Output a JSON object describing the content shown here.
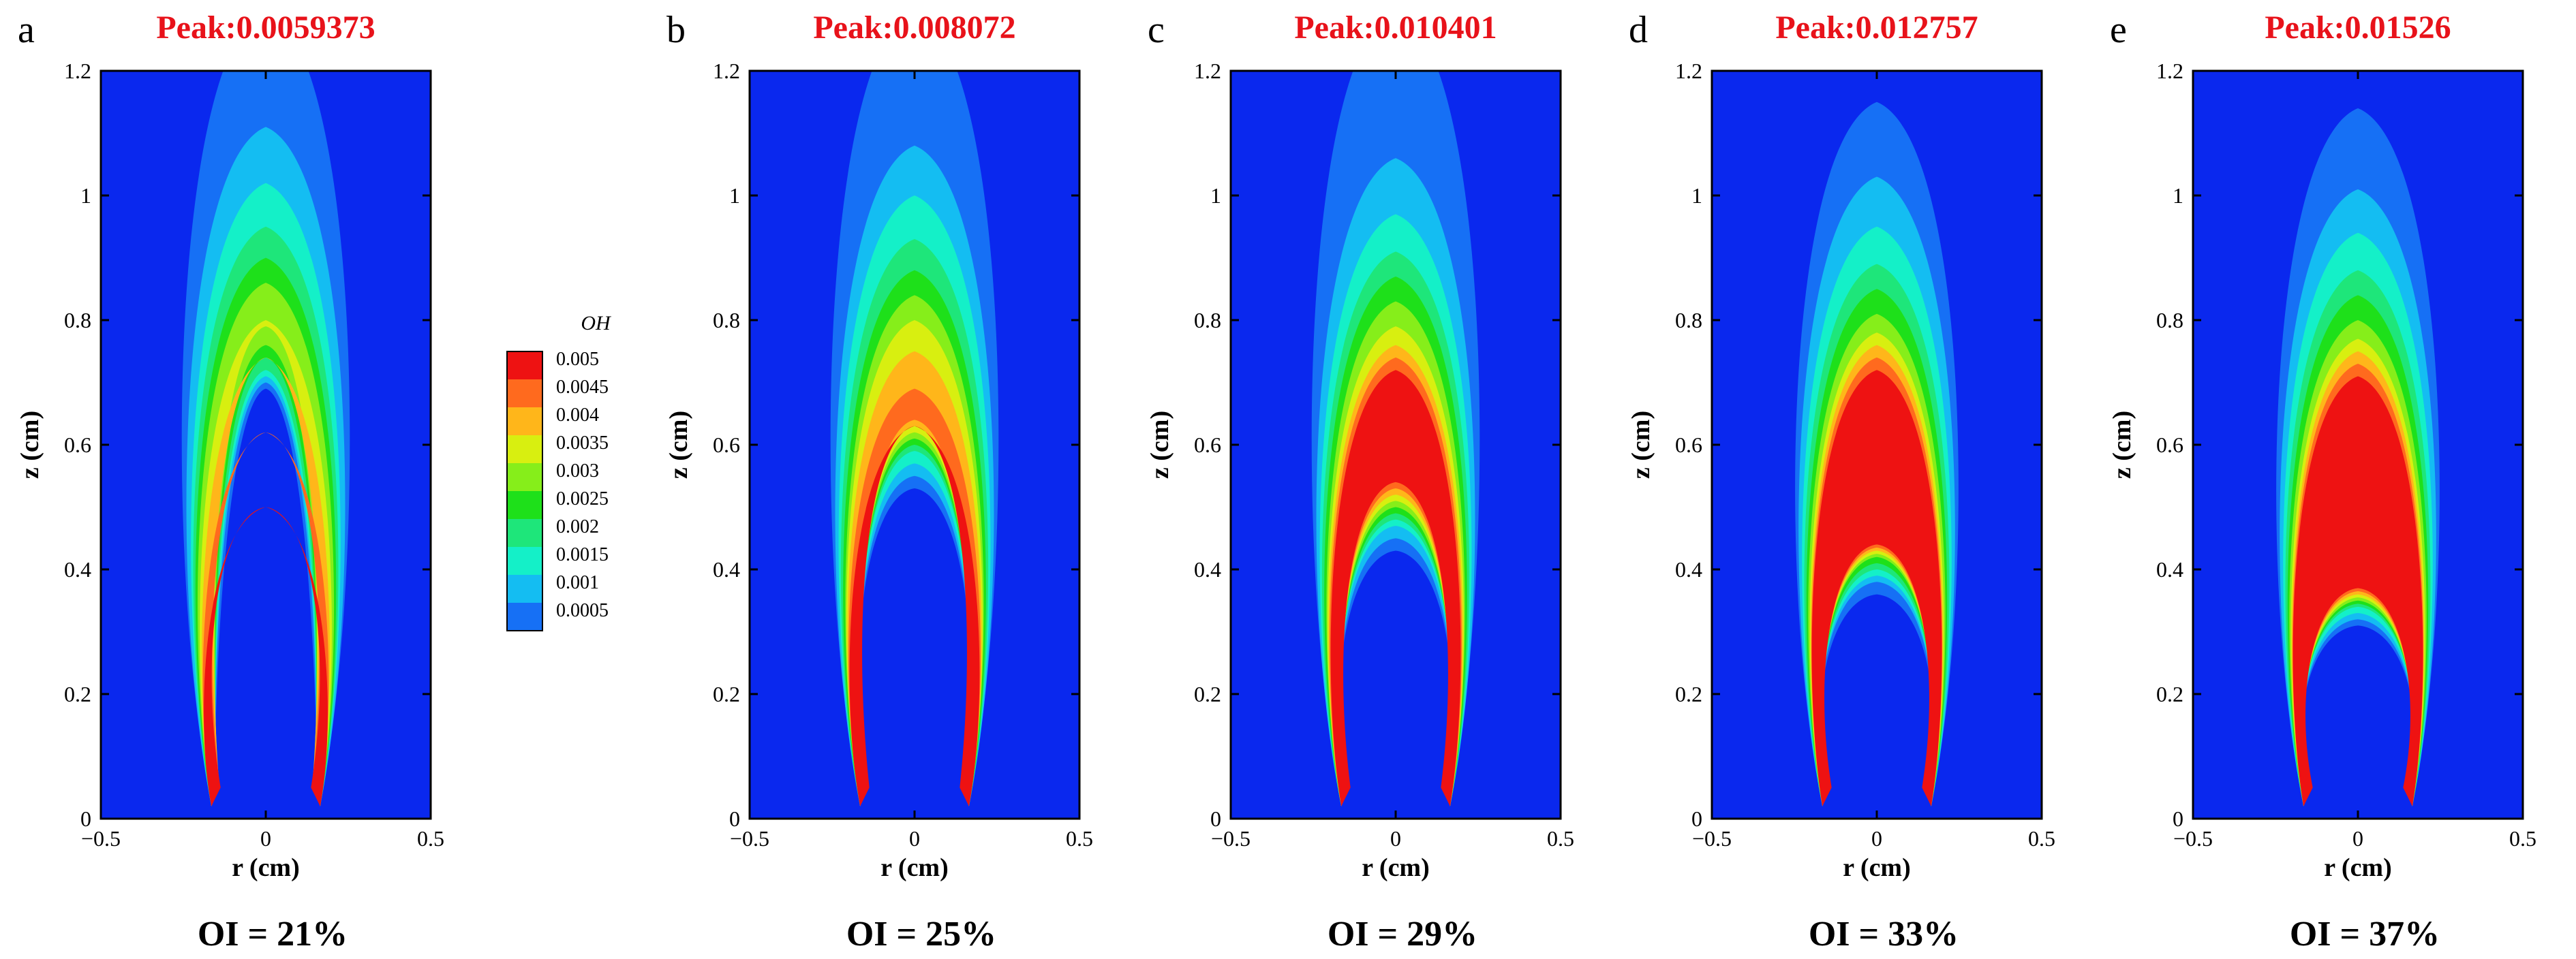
{
  "figure": {
    "colors": {
      "background": "#ffffff",
      "peak_text": "#e8121a",
      "axis": "#000000"
    },
    "legend": {
      "title": "OH",
      "levels": [
        "0.005",
        "0.0045",
        "0.004",
        "0.0035",
        "0.003",
        "0.0025",
        "0.002",
        "0.0015",
        "0.001",
        "0.0005"
      ],
      "colors": [
        "#ee1212",
        "#ff6a1e",
        "#ffb61a",
        "#d8ef10",
        "#86ee1a",
        "#1ee01a",
        "#1ee67a",
        "#14f0c8",
        "#14bdf2",
        "#1670f5",
        "#0a28ee"
      ]
    }
  },
  "chart_data": [
    {
      "type": "contour",
      "panel_label": "a",
      "title": "Peak:0.0059373",
      "caption": "OI = 21%",
      "xlabel": "r (cm)",
      "ylabel": "z (cm)",
      "xlim": [
        -0.5,
        0.5
      ],
      "ylim": [
        0,
        1.2
      ],
      "xticks": [
        "−0.5",
        "0",
        "0.5"
      ],
      "yticks": [
        "0",
        "0.2",
        "0.4",
        "0.6",
        "0.8",
        "1",
        "1.2"
      ],
      "peak": 0.0059373,
      "field": "OH",
      "contours": [
        {
          "level": 0.0005,
          "r_max": 0.28,
          "z_top": 1.3,
          "inner_z_top": 0.69,
          "inner_r": 0.1
        },
        {
          "level": 0.001,
          "r_max": 0.26,
          "z_top": 1.11,
          "inner_z_top": 0.7,
          "inner_r": 0.11
        },
        {
          "level": 0.0015,
          "r_max": 0.24,
          "z_top": 1.02,
          "inner_z_top": 0.71,
          "inner_r": 0.115
        },
        {
          "level": 0.002,
          "r_max": 0.23,
          "z_top": 0.95,
          "inner_z_top": 0.72,
          "inner_r": 0.12
        },
        {
          "level": 0.0025,
          "r_max": 0.22,
          "z_top": 0.9,
          "inner_z_top": 0.74,
          "inner_r": 0.125
        },
        {
          "level": 0.003,
          "r_max": 0.21,
          "z_top": 0.86,
          "inner_z_top": 0.76,
          "inner_r": 0.13
        },
        {
          "level": 0.0035,
          "r_max": 0.2,
          "z_top": 0.8,
          "inner_z_top": 0.79,
          "inner_r": 0.135
        },
        {
          "level": 0.004,
          "r_max": 0.19,
          "z_top": 0.74,
          "inner_z_top": 0.74,
          "inner_r": 0.14
        },
        {
          "level": 0.0045,
          "r_max": 0.185,
          "z_top": 0.62,
          "inner_z_top": 0.62,
          "inner_r": 0.15
        },
        {
          "level": 0.005,
          "r_max": 0.18,
          "z_top": 0.5,
          "inner_z_top": 0.5,
          "inner_r": 0.155
        }
      ]
    },
    {
      "type": "contour",
      "panel_label": "b",
      "title": "Peak:0.008072",
      "caption": "OI = 25%",
      "xlabel": "r (cm)",
      "ylabel": "z (cm)",
      "xlim": [
        -0.5,
        0.5
      ],
      "ylim": [
        0,
        1.2
      ],
      "xticks": [
        "−0.5",
        "0",
        "0.5"
      ],
      "yticks": [
        "0",
        "0.2",
        "0.4",
        "0.6",
        "0.8",
        "1",
        "1.2"
      ],
      "peak": 0.008072,
      "field": "OH",
      "contours": [
        {
          "level": 0.0005,
          "r_max": 0.28,
          "z_top": 1.3,
          "inner_z_top": 0.53
        },
        {
          "level": 0.001,
          "r_max": 0.26,
          "z_top": 1.08,
          "inner_z_top": 0.55
        },
        {
          "level": 0.0015,
          "r_max": 0.245,
          "z_top": 1.0,
          "inner_z_top": 0.57
        },
        {
          "level": 0.002,
          "r_max": 0.235,
          "z_top": 0.93,
          "inner_z_top": 0.59
        },
        {
          "level": 0.0025,
          "r_max": 0.225,
          "z_top": 0.88,
          "inner_z_top": 0.6
        },
        {
          "level": 0.003,
          "r_max": 0.215,
          "z_top": 0.84,
          "inner_z_top": 0.61
        },
        {
          "level": 0.0035,
          "r_max": 0.21,
          "z_top": 0.8,
          "inner_z_top": 0.62
        },
        {
          "level": 0.004,
          "r_max": 0.205,
          "z_top": 0.75,
          "inner_z_top": 0.63
        },
        {
          "level": 0.0045,
          "r_max": 0.2,
          "z_top": 0.69,
          "inner_z_top": 0.64
        },
        {
          "level": 0.005,
          "r_max": 0.195,
          "z_top": 0.63,
          "inner_z_top": 0.63
        }
      ]
    },
    {
      "type": "contour",
      "panel_label": "c",
      "title": "Peak:0.010401",
      "caption": "OI = 29%",
      "xlabel": "r (cm)",
      "ylabel": "z (cm)",
      "xlim": [
        -0.5,
        0.5
      ],
      "ylim": [
        0,
        1.2
      ],
      "xticks": [
        "−0.5",
        "0",
        "0.5"
      ],
      "yticks": [
        "0",
        "0.2",
        "0.4",
        "0.6",
        "0.8",
        "1",
        "1.2"
      ],
      "peak": 0.010401,
      "field": "OH",
      "contours": [
        {
          "level": 0.0005,
          "r_max": 0.28,
          "z_top": 1.3,
          "inner_z_top": 0.43
        },
        {
          "level": 0.001,
          "r_max": 0.26,
          "z_top": 1.06,
          "inner_z_top": 0.45
        },
        {
          "level": 0.0015,
          "r_max": 0.245,
          "z_top": 0.97,
          "inner_z_top": 0.47
        },
        {
          "level": 0.002,
          "r_max": 0.235,
          "z_top": 0.91,
          "inner_z_top": 0.48
        },
        {
          "level": 0.0025,
          "r_max": 0.225,
          "z_top": 0.87,
          "inner_z_top": 0.49
        },
        {
          "level": 0.003,
          "r_max": 0.215,
          "z_top": 0.83,
          "inner_z_top": 0.5
        },
        {
          "level": 0.0035,
          "r_max": 0.21,
          "z_top": 0.79,
          "inner_z_top": 0.51
        },
        {
          "level": 0.004,
          "r_max": 0.205,
          "z_top": 0.76,
          "inner_z_top": 0.52
        },
        {
          "level": 0.0045,
          "r_max": 0.2,
          "z_top": 0.74,
          "inner_z_top": 0.53
        },
        {
          "level": 0.005,
          "r_max": 0.195,
          "z_top": 0.72,
          "inner_z_top": 0.54
        }
      ]
    },
    {
      "type": "contour",
      "panel_label": "d",
      "title": "Peak:0.012757",
      "caption": "OI = 33%",
      "xlabel": "r (cm)",
      "ylabel": "z (cm)",
      "xlim": [
        -0.5,
        0.5
      ],
      "ylim": [
        0,
        1.2
      ],
      "xticks": [
        "−0.5",
        "0",
        "0.5"
      ],
      "yticks": [
        "0",
        "0.2",
        "0.4",
        "0.6",
        "0.8",
        "1",
        "1.2"
      ],
      "peak": 0.012757,
      "field": "OH",
      "contours": [
        {
          "level": 0.0005,
          "r_max": 0.27,
          "z_top": 1.15,
          "inner_z_top": 0.36
        },
        {
          "level": 0.001,
          "r_max": 0.255,
          "z_top": 1.03,
          "inner_z_top": 0.38
        },
        {
          "level": 0.0015,
          "r_max": 0.24,
          "z_top": 0.95,
          "inner_z_top": 0.39
        },
        {
          "level": 0.002,
          "r_max": 0.23,
          "z_top": 0.89,
          "inner_z_top": 0.4
        },
        {
          "level": 0.0025,
          "r_max": 0.22,
          "z_top": 0.85,
          "inner_z_top": 0.41
        },
        {
          "level": 0.003,
          "r_max": 0.212,
          "z_top": 0.81,
          "inner_z_top": 0.42
        },
        {
          "level": 0.0035,
          "r_max": 0.205,
          "z_top": 0.78,
          "inner_z_top": 0.425
        },
        {
          "level": 0.004,
          "r_max": 0.2,
          "z_top": 0.76,
          "inner_z_top": 0.43
        },
        {
          "level": 0.0045,
          "r_max": 0.197,
          "z_top": 0.74,
          "inner_z_top": 0.435
        },
        {
          "level": 0.005,
          "r_max": 0.195,
          "z_top": 0.72,
          "inner_z_top": 0.44
        }
      ]
    },
    {
      "type": "contour",
      "panel_label": "e",
      "title": "Peak:0.01526",
      "caption": "OI = 37%",
      "xlabel": "r (cm)",
      "ylabel": "z (cm)",
      "xlim": [
        -0.5,
        0.5
      ],
      "ylim": [
        0,
        1.2
      ],
      "xticks": [
        "−0.5",
        "0",
        "0.5"
      ],
      "yticks": [
        "0",
        "0.2",
        "0.4",
        "0.6",
        "0.8",
        "1",
        "1.2"
      ],
      "peak": 0.01526,
      "field": "OH",
      "contours": [
        {
          "level": 0.0005,
          "r_max": 0.27,
          "z_top": 1.14,
          "inner_z_top": 0.31
        },
        {
          "level": 0.001,
          "r_max": 0.255,
          "z_top": 1.01,
          "inner_z_top": 0.32
        },
        {
          "level": 0.0015,
          "r_max": 0.24,
          "z_top": 0.94,
          "inner_z_top": 0.33
        },
        {
          "level": 0.002,
          "r_max": 0.23,
          "z_top": 0.88,
          "inner_z_top": 0.34
        },
        {
          "level": 0.0025,
          "r_max": 0.22,
          "z_top": 0.84,
          "inner_z_top": 0.345
        },
        {
          "level": 0.003,
          "r_max": 0.212,
          "z_top": 0.8,
          "inner_z_top": 0.35
        },
        {
          "level": 0.0035,
          "r_max": 0.205,
          "z_top": 0.77,
          "inner_z_top": 0.355
        },
        {
          "level": 0.004,
          "r_max": 0.2,
          "z_top": 0.75,
          "inner_z_top": 0.36
        },
        {
          "level": 0.0045,
          "r_max": 0.197,
          "z_top": 0.73,
          "inner_z_top": 0.365
        },
        {
          "level": 0.005,
          "r_max": 0.195,
          "z_top": 0.71,
          "inner_z_top": 0.37
        }
      ]
    }
  ]
}
